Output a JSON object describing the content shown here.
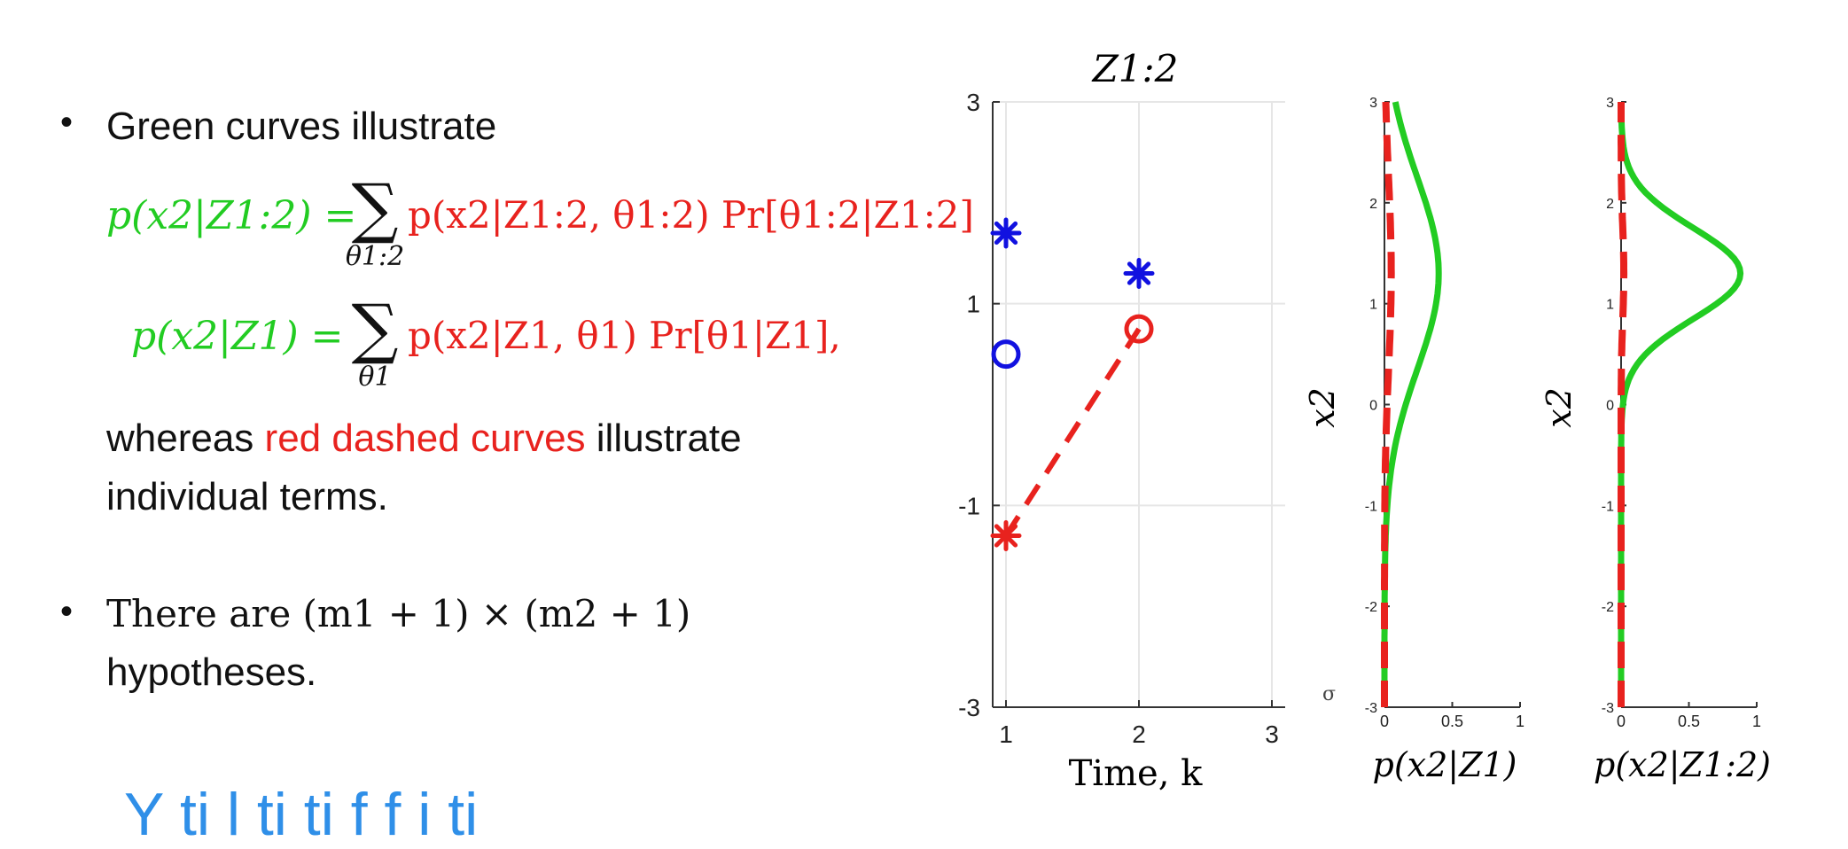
{
  "bullets": {
    "b1_intro": "Green curves illustrate",
    "eq1": {
      "lhs": "p(x2|Z1:2) =",
      "sum_symbol": "∑",
      "sum_index": "θ1:2",
      "rhs": "p(x2|Z1:2, θ1:2) Pr[θ1:2|Z1:2]"
    },
    "eq2": {
      "lhs": "p(x2|Z1) =",
      "sum_symbol": "∑",
      "sum_index": "θ1",
      "rhs": "p(x2|Z1, θ1) Pr[θ1|Z1],"
    },
    "b1_whereas": "whereas",
    "b1_red_phrase": "red dashed curves",
    "b1_after": "illustrate",
    "b1_line2": "individual terms.",
    "b2_line1": "There are (m1 + 1) × (m2 + 1)",
    "b2_line2": "hypotheses.",
    "bullet_glyph": "•"
  },
  "bottom_cut_text": "Y                ti          l  ti      ti    f                    f  i      ti",
  "colors": {
    "green": "#22cc22",
    "red": "#e8221e",
    "blue": "#1111e0",
    "grid": "#e6e6e6",
    "axis": "#333333"
  },
  "chart_data": [
    {
      "type": "scatter",
      "title": "Z1:2",
      "xlabel": "Time, k",
      "ylabel": "",
      "xlim": [
        0.9,
        3.1
      ],
      "ylim": [
        -3,
        3
      ],
      "xticks": [
        "1",
        "2",
        "3"
      ],
      "yticks": [
        "3",
        "1",
        "-1",
        "-3"
      ],
      "grid": true,
      "series": [
        {
          "marker": "asterisk",
          "color": "blue",
          "points": [
            [
              1,
              1.7
            ],
            [
              2,
              1.3
            ]
          ]
        },
        {
          "marker": "circle",
          "color": "blue",
          "points": [
            [
              1,
              0.5
            ]
          ]
        },
        {
          "marker": "circle",
          "color": "red",
          "points": [
            [
              2,
              0.75
            ]
          ]
        },
        {
          "marker": "asterisk",
          "color": "red",
          "points": [
            [
              1,
              -1.3
            ]
          ]
        },
        {
          "marker": "dashed-line",
          "color": "red",
          "points": [
            [
              1,
              -1.3
            ],
            [
              2,
              0.75
            ]
          ]
        }
      ]
    },
    {
      "type": "line",
      "title": "",
      "xlabel": "p(x2|Z1)",
      "ylabel": "x2",
      "xlim": [
        0,
        1
      ],
      "ylim": [
        -3,
        3
      ],
      "xticks": [
        "0",
        "0.5",
        "1"
      ],
      "yticks": [
        "3",
        "2",
        "1",
        "0",
        "-1",
        "-2",
        "-3"
      ],
      "stray_mark": "σ",
      "series": [
        {
          "style": "solid",
          "color": "green",
          "density": {
            "mean": 1.3,
            "sd": 0.95,
            "peak": 0.4
          }
        },
        {
          "style": "dashed",
          "color": "red",
          "density": {
            "mean": 1.3,
            "sd": 0.95,
            "peak": 0.05
          }
        }
      ]
    },
    {
      "type": "line",
      "title": "",
      "xlabel": "p(x2|Z1:2)",
      "ylabel": "x2",
      "xlim": [
        0,
        1
      ],
      "ylim": [
        -3,
        3
      ],
      "xticks": [
        "0",
        "0.5",
        "1"
      ],
      "yticks": [
        "3",
        "2",
        "1",
        "0",
        "-1",
        "-2",
        "-3"
      ],
      "series": [
        {
          "style": "solid",
          "color": "green",
          "density": {
            "mean": 1.3,
            "sd": 0.45,
            "peak": 0.88
          }
        },
        {
          "style": "dashed",
          "color": "red",
          "density": {
            "mean": 1.3,
            "sd": 0.45,
            "peak": 0.02
          }
        }
      ]
    }
  ]
}
